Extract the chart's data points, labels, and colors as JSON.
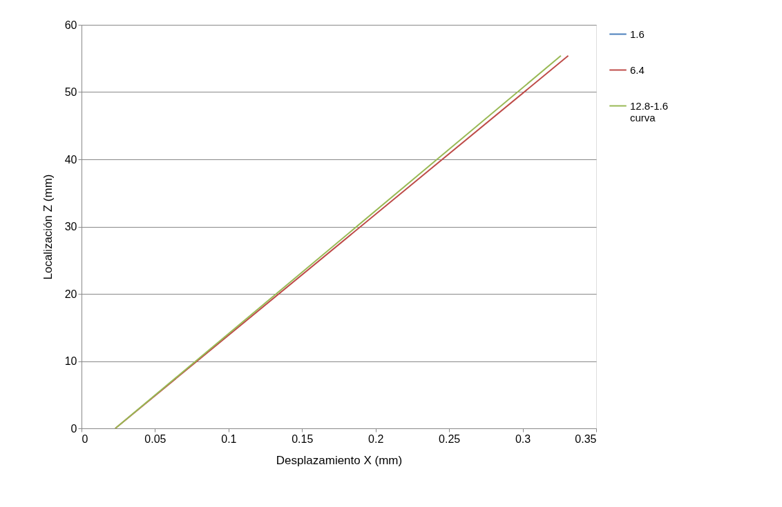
{
  "chart_data": {
    "type": "line",
    "xlabel": "Desplazamiento X (mm)",
    "ylabel": "Localización Z (mm)",
    "xlim": [
      0,
      0.35
    ],
    "xticks": [
      0,
      0.05,
      0.1,
      0.15,
      0.2,
      0.25,
      0.3,
      0.35
    ],
    "ylim": [
      0,
      60
    ],
    "yticks": [
      0,
      10,
      20,
      30,
      40,
      50,
      60
    ],
    "grid": "y",
    "legend": "right",
    "marker": "none",
    "line_style": "solid",
    "series": [
      {
        "name": "1.6",
        "color": "#4a7ebb",
        "x": [
          null,
          null
        ],
        "values": [
          null,
          null
        ]
      },
      {
        "name": "6.4",
        "color": "#be4b48",
        "x": [
          0.023,
          0.331
        ],
        "values": [
          0,
          55.4
        ]
      },
      {
        "name": "12.8-1.6 curva",
        "color": "#98b954",
        "x": [
          0.023,
          0.326
        ],
        "values": [
          0,
          55.4
        ]
      }
    ]
  }
}
